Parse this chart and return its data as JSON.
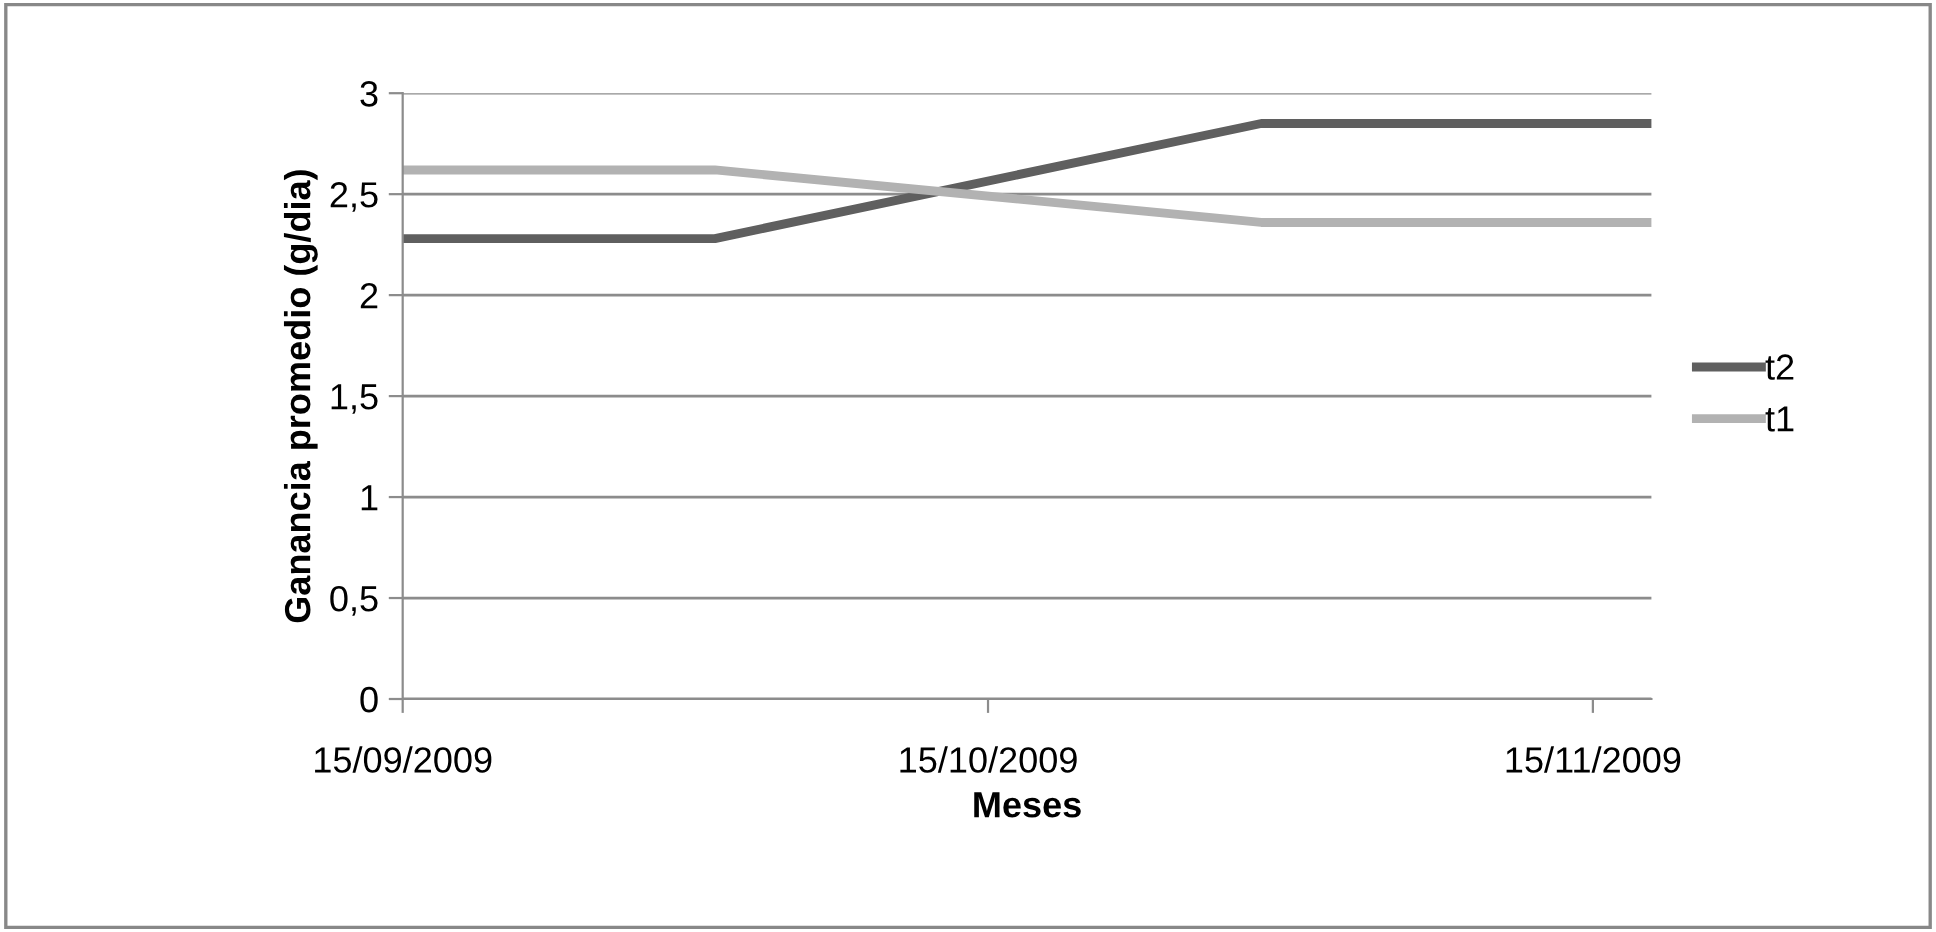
{
  "chart_data": {
    "type": "line",
    "xlabel": "Meses",
    "ylabel": "Ganancia promedio (g/dia)",
    "x": [
      "2009-09-15",
      "2009-10-01",
      "2009-10-29",
      "2009-11-18"
    ],
    "series": [
      {
        "name": "t2",
        "color": "#5f5f5f",
        "values": [
          2.28,
          2.28,
          2.85,
          2.85
        ]
      },
      {
        "name": "t1",
        "color": "#b2b2b2",
        "values": [
          2.62,
          2.62,
          2.36,
          2.36
        ]
      }
    ],
    "xlim": [
      "2009-09-15",
      "2009-11-18"
    ],
    "xticks": [
      {
        "value": "2009-09-15",
        "label": "15/09/2009"
      },
      {
        "value": "2009-10-15",
        "label": "15/10/2009"
      },
      {
        "value": "2009-11-15",
        "label": "15/11/2009"
      }
    ],
    "ylim": [
      0,
      3
    ],
    "yticks": [
      0,
      {
        "value": 0.5,
        "label": "0,5"
      },
      1,
      {
        "value": 1.5,
        "label": "1,5"
      },
      2,
      {
        "value": 2.5,
        "label": "2,5"
      },
      3
    ],
    "grid": "y",
    "legend": "right",
    "marker": "none",
    "line_style": "solid"
  }
}
